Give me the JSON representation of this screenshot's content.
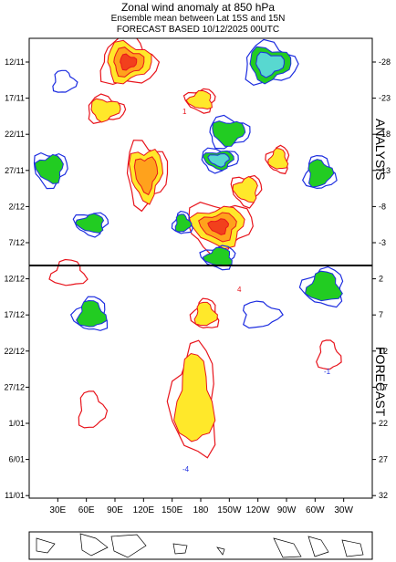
{
  "header": {
    "title": "Zonal wind anomaly at 850 hPa",
    "subtitle": "Ensemble mean between  Lat 15S and 15N",
    "forecast_line": "FORECAST  BASED 10/12/2025 00UTC"
  },
  "side_labels": {
    "analysis": "ANALYSIS",
    "forecast": "FORECAST"
  },
  "colors": {
    "positive_contour": "#e8141c",
    "negative_contour": "#1d2de0",
    "fill_yellow": "#ffe82a",
    "fill_orange": "#ffa21c",
    "fill_red": "#f2401c",
    "fill_green": "#22cc22",
    "fill_cyan": "#58d8d0",
    "divider": "#000000"
  },
  "chart_data": {
    "type": "heatmap",
    "title": "Zonal wind anomaly at 850 hPa",
    "x_axis": {
      "ticks": [
        "30E",
        "60E",
        "90E",
        "120E",
        "150E",
        "180",
        "150W",
        "120W",
        "90W",
        "60W",
        "30W"
      ],
      "range": [
        "0",
        "360"
      ]
    },
    "y_axis_left": {
      "ticks": [
        "12/11",
        "17/11",
        "22/11",
        "27/11",
        "2/12",
        "7/12",
        "12/12",
        "17/12",
        "22/12",
        "27/12",
        "1/01",
        "6/01",
        "11/01"
      ]
    },
    "y_axis_right": {
      "ticks": [
        "-28",
        "-23",
        "-18",
        "-13",
        "-8",
        "-3",
        "2",
        "7",
        "12",
        "17",
        "22",
        "27",
        "32"
      ]
    },
    "analysis_forecast_boundary": "10/12",
    "contour_labels": [
      "1",
      "-1",
      "4",
      "-4"
    ],
    "contour_levels": [
      -4,
      -2,
      -1,
      1,
      2,
      4,
      6
    ],
    "sections": [
      "ANALYSIS",
      "FORECAST"
    ]
  }
}
